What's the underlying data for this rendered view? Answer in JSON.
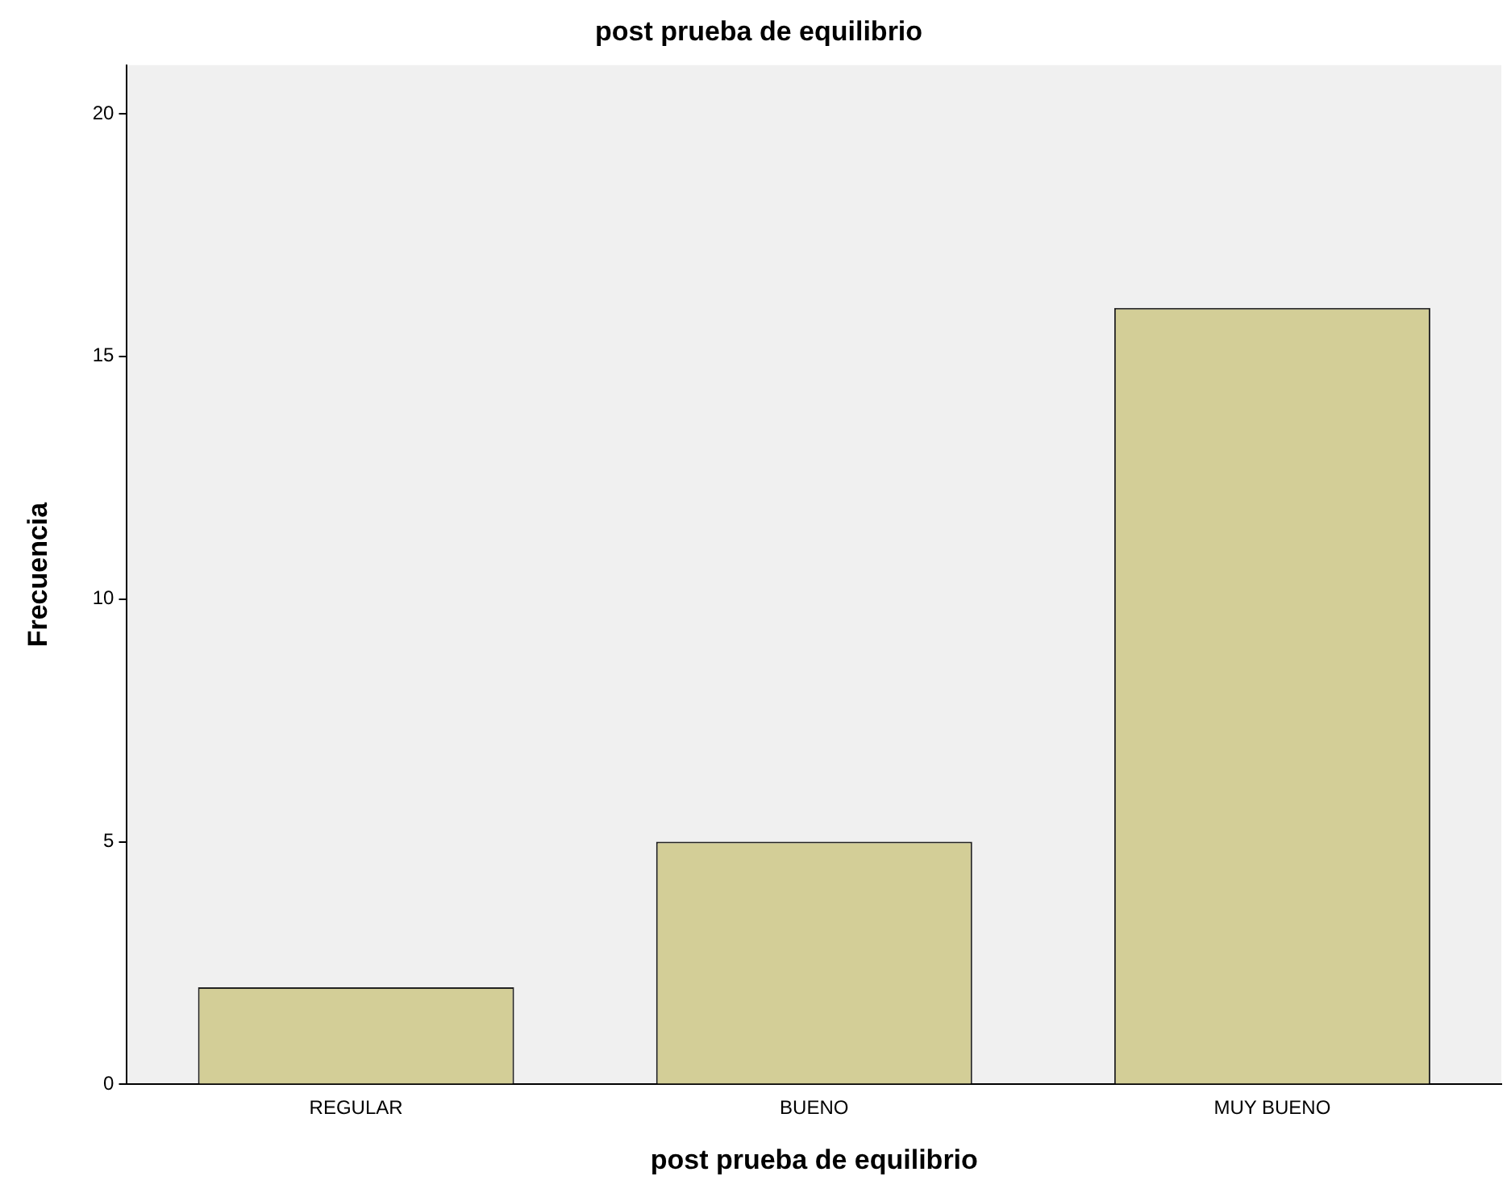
{
  "chart_data": {
    "type": "bar",
    "title": "post prueba de equilibrio",
    "xlabel": "post prueba de equilibrio",
    "ylabel": "Frecuencia",
    "categories": [
      "REGULAR",
      "BUENO",
      "MUY BUENO"
    ],
    "values": [
      2,
      5,
      16
    ],
    "color": "#d3ce97",
    "ylim": [
      0,
      21
    ],
    "yticks": [
      0,
      5,
      10,
      15,
      20
    ],
    "grid": false,
    "legend": false
  }
}
